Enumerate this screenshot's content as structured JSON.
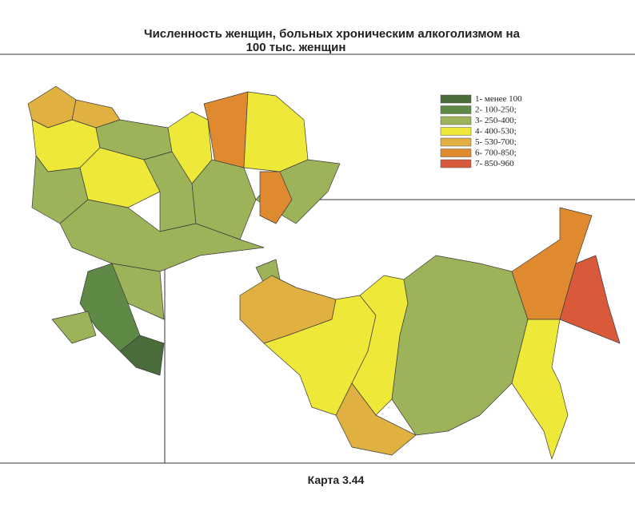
{
  "header": {
    "title_line1": "Численность женщин, больных хроническим алкоголизмом на",
    "title_line2": "100 тыс. женщин"
  },
  "legend": {
    "items": [
      {
        "label": "1- менее 100",
        "color": "#4a6b3a"
      },
      {
        "label": "2- 100-250;",
        "color": "#5e8a45"
      },
      {
        "label": "3- 250-400;",
        "color": "#9cb35a"
      },
      {
        "label": "4- 400-530;",
        "color": "#eee838"
      },
      {
        "label": "5- 530-700;",
        "color": "#e0b040"
      },
      {
        "label": "6- 700-850;",
        "color": "#e08a30"
      },
      {
        "label": "7- 850-960",
        "color": "#d85a3a"
      }
    ]
  },
  "caption": "Карта 3.44"
}
